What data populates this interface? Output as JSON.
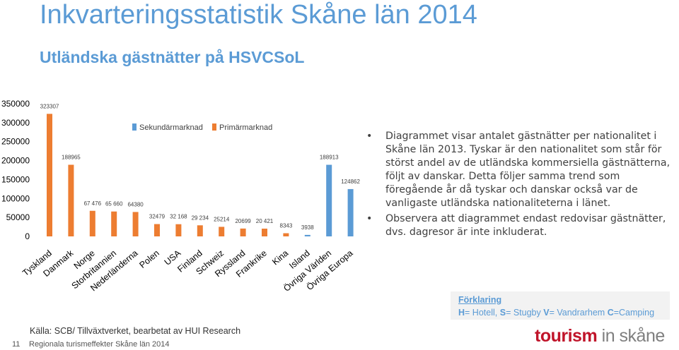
{
  "title": "Inkvarteringsstatistik Skåne län 2014",
  "subtitle": "Utländska gästnätter på HSVCSoL",
  "chart_data": {
    "type": "bar",
    "categories": [
      "Tyskland",
      "Danmark",
      "Norge",
      "Storbritannien",
      "Nederländerna",
      "Polen",
      "USA",
      "Finland",
      "Schweiz",
      "Ryssland",
      "Frankrike",
      "Kina",
      "Island",
      "Övriga Världen",
      "Övriga Europa"
    ],
    "values": [
      323307,
      188965,
      67476,
      65660,
      64380,
      32479,
      32168,
      29234,
      25214,
      20699,
      20421,
      8343,
      3938,
      188913,
      124862
    ],
    "data_labels": [
      "323307",
      "188965",
      "67 476",
      "65 660",
      "64380",
      "32479",
      "32 168",
      "29 234",
      "25214",
      "20699",
      "20 421",
      "8343",
      "3938",
      "188913",
      "124862"
    ],
    "market": [
      "secondary",
      "secondary",
      "secondary",
      "secondary",
      "secondary",
      "primary",
      "primary",
      "primary",
      "primary",
      "primary",
      "primary",
      "primary",
      "primary",
      "secondary",
      "secondary"
    ],
    "series": [
      {
        "name": "Sekundärmarknad",
        "color": "#5b9bd5"
      },
      {
        "name": "Primärmarknad",
        "color": "#ed7d31"
      }
    ],
    "bar_colors": [
      "#ed7d31",
      "#ed7d31",
      "#ed7d31",
      "#ed7d31",
      "#ed7d31",
      "#ed7d31",
      "#ed7d31",
      "#ed7d31",
      "#ed7d31",
      "#ed7d31",
      "#ed7d31",
      "#ed7d31",
      "#5b9bd5",
      "#5b9bd5",
      "#5b9bd5"
    ],
    "yticks": [
      "350000",
      "300000",
      "250000",
      "200000",
      "150000",
      "100000",
      "50000",
      "0"
    ],
    "ylim": [
      0,
      350000
    ],
    "legend_position": "top"
  },
  "bullets": [
    "Diagrammet visar antalet gästnätter per nationalitet i Skåne län 2013. Tyskar är den nationalitet som står för störst andel av de utländska kommersiella gästnätterna, följt av danskar. Detta följer samma trend som föregående år då tyskar och danskar också var de vanligaste utländska nationaliteterna i länet.",
    "Observera att diagrammet endast redovisar gästnätter, dvs. dagresor är inte inkluderat."
  ],
  "legend_box": {
    "title": "Förklaring",
    "h_key": "H",
    "h_text": "= Hotell, ",
    "s_key": "S",
    "s_text": "= Stugby ",
    "v_key": "V",
    "v_text": "= Vandrarhem ",
    "c_key": "C",
    "c_text": "=Camping"
  },
  "source": "Källa: SCB/ Tillväxtverket, bearbetat av HUI Research",
  "footer": {
    "page_number": "11",
    "text": "Regionala turismeffekter Skåne län 2014"
  },
  "logo": {
    "part1": "tourism",
    "part2": " in skåne"
  },
  "colors": {
    "accent": "#5b9bd5",
    "primary_bar": "#ed7d31",
    "brand": "#c0142a"
  }
}
